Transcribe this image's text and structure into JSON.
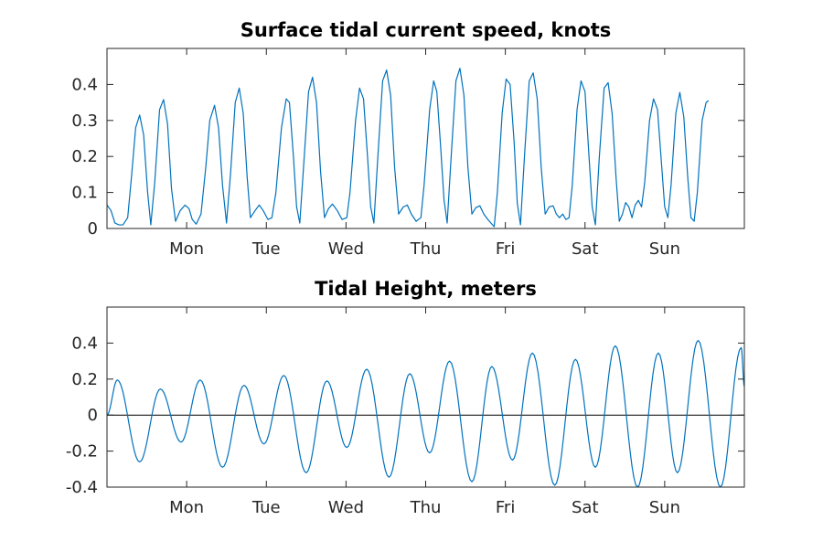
{
  "colors": {
    "series": "#0072bd",
    "axis": "#262626",
    "zero_line": "#000000"
  },
  "chart_data": [
    {
      "id": "current",
      "type": "line",
      "title": "Surface tidal current speed, knots",
      "xlabel": "",
      "ylabel": "",
      "x_unit": "days",
      "xlim": [
        0,
        8
      ],
      "ylim": [
        0,
        0.5
      ],
      "yticks": [
        0,
        0.1,
        0.2,
        0.3,
        0.4
      ],
      "ytick_labels": [
        "0",
        "0.1",
        "0.2",
        "0.3",
        "0.4"
      ],
      "xticks": [
        1,
        2,
        3,
        4,
        5,
        6,
        7
      ],
      "xtick_labels": [
        "Mon",
        "Tue",
        "Wed",
        "Thu",
        "Fri",
        "Sat",
        "Sun"
      ],
      "zero_line": false,
      "grid": false,
      "series": [
        {
          "color": "#0072bd",
          "points": [
            [
              0,
              0.065
            ],
            [
              0.05,
              0.05
            ],
            [
              0.1,
              0.015
            ],
            [
              0.15,
              0.01
            ],
            [
              0.2,
              0.01
            ],
            [
              0.26,
              0.03
            ],
            [
              0.31,
              0.15
            ],
            [
              0.36,
              0.28
            ],
            [
              0.41,
              0.315
            ],
            [
              0.46,
              0.26
            ],
            [
              0.51,
              0.1
            ],
            [
              0.55,
              0.01
            ],
            [
              0.6,
              0.13
            ],
            [
              0.66,
              0.33
            ],
            [
              0.71,
              0.358
            ],
            [
              0.76,
              0.29
            ],
            [
              0.81,
              0.11
            ],
            [
              0.86,
              0.02
            ],
            [
              0.92,
              0.05
            ],
            [
              0.98,
              0.065
            ],
            [
              1.03,
              0.055
            ],
            [
              1.07,
              0.025
            ],
            [
              1.12,
              0.012
            ],
            [
              1.18,
              0.04
            ],
            [
              1.24,
              0.17
            ],
            [
              1.29,
              0.3
            ],
            [
              1.35,
              0.342
            ],
            [
              1.4,
              0.28
            ],
            [
              1.45,
              0.12
            ],
            [
              1.5,
              0.015
            ],
            [
              1.55,
              0.15
            ],
            [
              1.61,
              0.35
            ],
            [
              1.66,
              0.39
            ],
            [
              1.71,
              0.32
            ],
            [
              1.76,
              0.14
            ],
            [
              1.8,
              0.03
            ],
            [
              1.86,
              0.05
            ],
            [
              1.91,
              0.065
            ],
            [
              1.96,
              0.05
            ],
            [
              2.02,
              0.025
            ],
            [
              2.07,
              0.03
            ],
            [
              2.12,
              0.1
            ],
            [
              2.19,
              0.28
            ],
            [
              2.25,
              0.36
            ],
            [
              2.29,
              0.35
            ],
            [
              2.34,
              0.2
            ],
            [
              2.38,
              0.06
            ],
            [
              2.42,
              0.015
            ],
            [
              2.47,
              0.18
            ],
            [
              2.53,
              0.38
            ],
            [
              2.58,
              0.42
            ],
            [
              2.63,
              0.35
            ],
            [
              2.68,
              0.16
            ],
            [
              2.73,
              0.03
            ],
            [
              2.78,
              0.055
            ],
            [
              2.83,
              0.068
            ],
            [
              2.89,
              0.05
            ],
            [
              2.95,
              0.025
            ],
            [
              3.01,
              0.03
            ],
            [
              3.05,
              0.1
            ],
            [
              3.12,
              0.3
            ],
            [
              3.17,
              0.39
            ],
            [
              3.22,
              0.36
            ],
            [
              3.27,
              0.2
            ],
            [
              3.31,
              0.06
            ],
            [
              3.35,
              0.015
            ],
            [
              3.4,
              0.2
            ],
            [
              3.46,
              0.41
            ],
            [
              3.51,
              0.44
            ],
            [
              3.56,
              0.37
            ],
            [
              3.61,
              0.17
            ],
            [
              3.66,
              0.04
            ],
            [
              3.72,
              0.06
            ],
            [
              3.77,
              0.065
            ],
            [
              3.82,
              0.04
            ],
            [
              3.88,
              0.02
            ],
            [
              3.94,
              0.03
            ],
            [
              3.98,
              0.12
            ],
            [
              4.05,
              0.33
            ],
            [
              4.1,
              0.41
            ],
            [
              4.14,
              0.38
            ],
            [
              4.19,
              0.22
            ],
            [
              4.23,
              0.08
            ],
            [
              4.27,
              0.015
            ],
            [
              4.32,
              0.2
            ],
            [
              4.38,
              0.41
            ],
            [
              4.43,
              0.445
            ],
            [
              4.48,
              0.37
            ],
            [
              4.53,
              0.17
            ],
            [
              4.58,
              0.04
            ],
            [
              4.63,
              0.058
            ],
            [
              4.68,
              0.063
            ],
            [
              4.73,
              0.04
            ],
            [
              4.78,
              0.025
            ],
            [
              4.82,
              0.015
            ],
            [
              4.86,
              0.005
            ],
            [
              4.9,
              0.1
            ],
            [
              4.96,
              0.32
            ],
            [
              5.01,
              0.415
            ],
            [
              5.06,
              0.4
            ],
            [
              5.11,
              0.24
            ],
            [
              5.15,
              0.07
            ],
            [
              5.19,
              0.01
            ],
            [
              5.24,
              0.2
            ],
            [
              5.3,
              0.41
            ],
            [
              5.35,
              0.432
            ],
            [
              5.4,
              0.36
            ],
            [
              5.45,
              0.17
            ],
            [
              5.5,
              0.04
            ],
            [
              5.55,
              0.06
            ],
            [
              5.6,
              0.063
            ],
            [
              5.64,
              0.04
            ],
            [
              5.68,
              0.03
            ],
            [
              5.72,
              0.04
            ],
            [
              5.76,
              0.025
            ],
            [
              5.8,
              0.03
            ],
            [
              5.84,
              0.12
            ],
            [
              5.9,
              0.33
            ],
            [
              5.95,
              0.41
            ],
            [
              6.0,
              0.38
            ],
            [
              6.05,
              0.2
            ],
            [
              6.09,
              0.06
            ],
            [
              6.13,
              0.01
            ],
            [
              6.18,
              0.2
            ],
            [
              6.24,
              0.39
            ],
            [
              6.29,
              0.405
            ],
            [
              6.34,
              0.32
            ],
            [
              6.39,
              0.14
            ],
            [
              6.43,
              0.02
            ],
            [
              6.47,
              0.04
            ],
            [
              6.51,
              0.072
            ],
            [
              6.55,
              0.06
            ],
            [
              6.59,
              0.03
            ],
            [
              6.63,
              0.065
            ],
            [
              6.67,
              0.078
            ],
            [
              6.71,
              0.06
            ],
            [
              6.75,
              0.13
            ],
            [
              6.81,
              0.3
            ],
            [
              6.86,
              0.36
            ],
            [
              6.91,
              0.33
            ],
            [
              6.96,
              0.18
            ],
            [
              7.0,
              0.06
            ],
            [
              7.04,
              0.03
            ],
            [
              7.08,
              0.12
            ],
            [
              7.14,
              0.32
            ],
            [
              7.19,
              0.378
            ],
            [
              7.24,
              0.31
            ],
            [
              7.29,
              0.14
            ],
            [
              7.33,
              0.03
            ],
            [
              7.37,
              0.02
            ],
            [
              7.41,
              0.1
            ],
            [
              7.47,
              0.3
            ],
            [
              7.52,
              0.35
            ],
            [
              7.55,
              0.355
            ]
          ]
        }
      ]
    },
    {
      "id": "height",
      "type": "line",
      "title": "Tidal Height, meters",
      "xlabel": "",
      "ylabel": "",
      "x_unit": "days",
      "xlim": [
        0,
        8
      ],
      "ylim": [
        -0.4,
        0.6
      ],
      "yticks": [
        -0.4,
        -0.2,
        0,
        0.2,
        0.4
      ],
      "ytick_labels": [
        "-0.4",
        "-0.2",
        "0",
        "0.2",
        "0.4"
      ],
      "xticks": [
        1,
        2,
        3,
        4,
        5,
        6,
        7
      ],
      "xtick_labels": [
        "Mon",
        "Tue",
        "Wed",
        "Thu",
        "Fri",
        "Sat",
        "Sun"
      ],
      "zero_line": true,
      "grid": false,
      "series": [
        {
          "color": "#0072bd",
          "extrema": [
            [
              0,
              0.0
            ],
            [
              0.13,
              0.195
            ],
            [
              0.41,
              -0.26
            ],
            [
              0.67,
              0.145
            ],
            [
              0.93,
              -0.15
            ],
            [
              1.17,
              0.195
            ],
            [
              1.45,
              -0.29
            ],
            [
              1.72,
              0.165
            ],
            [
              1.97,
              -0.16
            ],
            [
              2.22,
              0.22
            ],
            [
              2.5,
              -0.32
            ],
            [
              2.76,
              0.19
            ],
            [
              3.01,
              -0.18
            ],
            [
              3.26,
              0.255
            ],
            [
              3.54,
              -0.345
            ],
            [
              3.8,
              0.23
            ],
            [
              4.05,
              -0.21
            ],
            [
              4.3,
              0.3
            ],
            [
              4.58,
              -0.37
            ],
            [
              4.83,
              0.27
            ],
            [
              5.09,
              -0.25
            ],
            [
              5.34,
              0.345
            ],
            [
              5.62,
              -0.39
            ],
            [
              5.88,
              0.31
            ],
            [
              6.13,
              -0.29
            ],
            [
              6.38,
              0.385
            ],
            [
              6.66,
              -0.4
            ],
            [
              6.92,
              0.345
            ],
            [
              7.16,
              -0.32
            ],
            [
              7.42,
              0.415
            ],
            [
              7.7,
              -0.4
            ],
            [
              7.96,
              0.375
            ],
            [
              8.0,
              0.16
            ]
          ]
        }
      ]
    }
  ]
}
